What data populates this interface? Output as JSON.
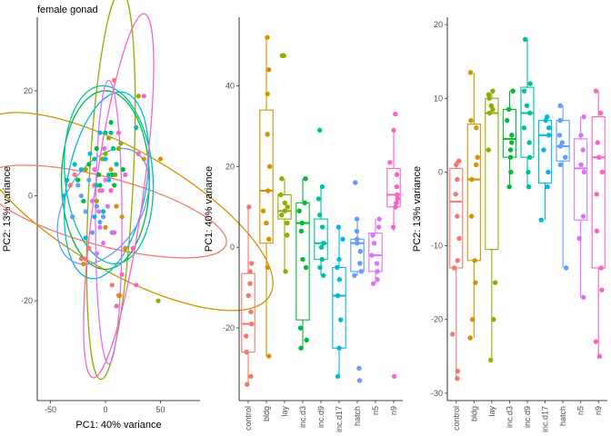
{
  "figure_title": "female gonad",
  "colors": {
    "control": "#F8766D",
    "bldg": "#D39200",
    "lay": "#93AA00",
    "inc.d3": "#00BA38",
    "inc.d9": "#00C19F",
    "inc.d17": "#00B9E3",
    "hatch": "#619CFF",
    "n5": "#DB72FB",
    "n9": "#FF61C3"
  },
  "chart_data": [
    {
      "type": "scatter",
      "title": "female gonad",
      "xlabel": "PC1: 40% variance",
      "ylabel": "PC2: 13% variance",
      "xlim": [
        -62,
        86
      ],
      "ylim": [
        -39,
        34
      ],
      "xticks": [
        -50,
        0,
        50
      ],
      "yticks": [
        -20,
        0,
        20
      ],
      "grid": false,
      "ellipses": [
        {
          "group": "control",
          "cx": -1,
          "cy": -3,
          "rx": 31,
          "ry": 24,
          "angle": -75
        },
        {
          "group": "bldg",
          "cx": 17,
          "cy": -3,
          "rx": 55,
          "ry": 32,
          "angle": -60
        },
        {
          "group": "lay",
          "cx": 5,
          "cy": 2,
          "rx": 20,
          "ry": 37,
          "angle": 3
        },
        {
          "group": "inc.d3",
          "cx": 0,
          "cy": 3,
          "rx": 40,
          "ry": 17,
          "angle": 0
        },
        {
          "group": "inc.d9",
          "cx": 3,
          "cy": 4,
          "rx": 40,
          "ry": 17,
          "angle": -5
        },
        {
          "group": "inc.d17",
          "cx": 1,
          "cy": 2,
          "rx": 36,
          "ry": 18,
          "angle": 10
        },
        {
          "group": "hatch",
          "cx": -2,
          "cy": -2,
          "rx": 35,
          "ry": 12,
          "angle": 30
        },
        {
          "group": "n5",
          "cx": 3,
          "cy": -5,
          "rx": 12,
          "ry": 27,
          "angle": 0
        },
        {
          "group": "n9",
          "cx": 12,
          "cy": 0,
          "rx": 22,
          "ry": 35,
          "angle": 8
        }
      ],
      "points": [
        {
          "group": "control",
          "x": -32,
          "y": 2
        },
        {
          "group": "control",
          "x": -28,
          "y": 4
        },
        {
          "group": "control",
          "x": -22,
          "y": -12
        },
        {
          "group": "control",
          "x": -15,
          "y": -10
        },
        {
          "group": "control",
          "x": -18,
          "y": -12
        },
        {
          "group": "control",
          "x": -5,
          "y": 1
        },
        {
          "group": "control",
          "x": 6,
          "y": -17
        },
        {
          "group": "control",
          "x": 8,
          "y": 22
        },
        {
          "group": "control",
          "x": 12,
          "y": -19
        },
        {
          "group": "control",
          "x": -10,
          "y": 2
        },
        {
          "group": "bldg",
          "x": 50,
          "y": 7
        },
        {
          "group": "bldg",
          "x": 13,
          "y": -19
        },
        {
          "group": "bldg",
          "x": 18,
          "y": -10
        },
        {
          "group": "bldg",
          "x": 15,
          "y": -4
        },
        {
          "group": "bldg",
          "x": 10,
          "y": -2
        },
        {
          "group": "bldg",
          "x": 35,
          "y": 7
        },
        {
          "group": "bldg",
          "x": -2,
          "y": 7
        },
        {
          "group": "bldg",
          "x": 5,
          "y": 5
        },
        {
          "group": "bldg",
          "x": -20,
          "y": -13
        },
        {
          "group": "bldg",
          "x": 0,
          "y": -6
        },
        {
          "group": "lay",
          "x": 30,
          "y": 19
        },
        {
          "group": "lay",
          "x": 48,
          "y": -20
        },
        {
          "group": "lay",
          "x": 3,
          "y": 11
        },
        {
          "group": "lay",
          "x": 12,
          "y": 9
        },
        {
          "group": "lay",
          "x": -18,
          "y": 5
        },
        {
          "group": "lay",
          "x": 0,
          "y": 8
        },
        {
          "group": "lay",
          "x": 9,
          "y": 4
        },
        {
          "group": "lay",
          "x": -3,
          "y": 7
        },
        {
          "group": "lay",
          "x": 14,
          "y": 10
        },
        {
          "group": "lay",
          "x": -8,
          "y": -1
        },
        {
          "group": "inc.d3",
          "x": -5,
          "y": 2
        },
        {
          "group": "inc.d3",
          "x": -20,
          "y": -1
        },
        {
          "group": "inc.d3",
          "x": -25,
          "y": 3
        },
        {
          "group": "inc.d3",
          "x": 6,
          "y": 4
        },
        {
          "group": "inc.d3",
          "x": -15,
          "y": 6
        },
        {
          "group": "inc.d3",
          "x": 5,
          "y": 14
        },
        {
          "group": "inc.d3",
          "x": 16,
          "y": 5
        },
        {
          "group": "inc.d3",
          "x": -6,
          "y": 4
        },
        {
          "group": "inc.d3",
          "x": -8,
          "y": 9
        },
        {
          "group": "inc.d3",
          "x": 8,
          "y": 2
        },
        {
          "group": "inc.d9",
          "x": -35,
          "y": 3
        },
        {
          "group": "inc.d9",
          "x": -28,
          "y": 6
        },
        {
          "group": "inc.d9",
          "x": 5,
          "y": 12
        },
        {
          "group": "inc.d9",
          "x": 10,
          "y": 6
        },
        {
          "group": "inc.d9",
          "x": -10,
          "y": 7
        },
        {
          "group": "inc.d9",
          "x": 28,
          "y": 13
        },
        {
          "group": "inc.d9",
          "x": 3,
          "y": 4
        },
        {
          "group": "inc.d9",
          "x": 0,
          "y": 12
        },
        {
          "group": "inc.d9",
          "x": 7,
          "y": 9
        },
        {
          "group": "inc.d9",
          "x": -2,
          "y": -3
        },
        {
          "group": "inc.d17",
          "x": -38,
          "y": 0
        },
        {
          "group": "inc.d17",
          "x": -30,
          "y": -4
        },
        {
          "group": "inc.d17",
          "x": -22,
          "y": 5
        },
        {
          "group": "inc.d17",
          "x": -18,
          "y": -8
        },
        {
          "group": "inc.d17",
          "x": -5,
          "y": 12
        },
        {
          "group": "inc.d17",
          "x": -10,
          "y": -4
        },
        {
          "group": "inc.d17",
          "x": 0,
          "y": 7
        },
        {
          "group": "inc.d17",
          "x": 3,
          "y": 3
        },
        {
          "group": "inc.d17",
          "x": -8,
          "y": 2
        },
        {
          "group": "inc.d17",
          "x": -14,
          "y": 8
        },
        {
          "group": "hatch",
          "x": -30,
          "y": -4
        },
        {
          "group": "hatch",
          "x": -18,
          "y": -3
        },
        {
          "group": "hatch",
          "x": -22,
          "y": 0
        },
        {
          "group": "hatch",
          "x": -12,
          "y": -7
        },
        {
          "group": "hatch",
          "x": -5,
          "y": -5
        },
        {
          "group": "hatch",
          "x": -15,
          "y": 3
        },
        {
          "group": "hatch",
          "x": -8,
          "y": -2
        },
        {
          "group": "hatch",
          "x": -2,
          "y": -4
        },
        {
          "group": "hatch",
          "x": 6,
          "y": -7
        },
        {
          "group": "hatch",
          "x": -25,
          "y": 2
        },
        {
          "group": "n5",
          "x": -8,
          "y": -11
        },
        {
          "group": "n5",
          "x": -3,
          "y": 1
        },
        {
          "group": "n5",
          "x": 0,
          "y": 3
        },
        {
          "group": "n5",
          "x": -5,
          "y": -6
        },
        {
          "group": "n5",
          "x": -2,
          "y": -9
        },
        {
          "group": "n5",
          "x": -10,
          "y": 5
        },
        {
          "group": "n5",
          "x": 2,
          "y": -2
        },
        {
          "group": "n5",
          "x": -1,
          "y": 9
        },
        {
          "group": "n5",
          "x": -12,
          "y": -1
        },
        {
          "group": "n5",
          "x": -6,
          "y": -3
        },
        {
          "group": "n9",
          "x": 35,
          "y": 19
        },
        {
          "group": "n9",
          "x": 30,
          "y": 8
        },
        {
          "group": "n9",
          "x": 25,
          "y": -10
        },
        {
          "group": "n9",
          "x": 15,
          "y": -15
        },
        {
          "group": "n9",
          "x": 10,
          "y": -21
        },
        {
          "group": "n9",
          "x": 28,
          "y": -17
        },
        {
          "group": "n9",
          "x": 5,
          "y": 1
        },
        {
          "group": "n9",
          "x": 12,
          "y": 12
        },
        {
          "group": "n9",
          "x": 18,
          "y": 4
        },
        {
          "group": "n9",
          "x": 8,
          "y": -7
        }
      ]
    },
    {
      "type": "box",
      "xlabel": "",
      "ylabel": "PC1: 40% variance",
      "ylim": [
        -38,
        57
      ],
      "yticks": [
        -20,
        0,
        20,
        40
      ],
      "grid": false,
      "categories": [
        "control",
        "bldg",
        "lay",
        "inc.d3",
        "inc.d9",
        "inc.d17",
        "hatch",
        "n5",
        "n9"
      ],
      "boxes": [
        {
          "group": "control",
          "q1": -26,
          "median": -19,
          "q3": -6.5,
          "lower": -34,
          "upper": 10
        },
        {
          "group": "bldg",
          "q1": 1,
          "median": 14,
          "q3": 34,
          "lower": -27,
          "upper": 52
        },
        {
          "group": "lay",
          "q1": 7,
          "median": 9,
          "q3": 13,
          "lower": -6,
          "upper": 17
        },
        {
          "group": "inc.d3",
          "q1": -18,
          "median": 6,
          "q3": 11,
          "lower": -25,
          "upper": 17
        },
        {
          "group": "inc.d9",
          "q1": -3,
          "median": 1,
          "q3": 7,
          "lower": -7,
          "upper": 15
        },
        {
          "group": "inc.d17",
          "q1": -25,
          "median": -12,
          "q3": -5,
          "lower": -32,
          "upper": 5
        },
        {
          "group": "hatch",
          "q1": -6,
          "median": 1,
          "q3": 2,
          "lower": -7,
          "upper": 7
        },
        {
          "group": "n5",
          "q1": -6,
          "median": -2,
          "q3": 3.5,
          "lower": -9,
          "upper": 7
        },
        {
          "group": "n9",
          "q1": 10,
          "median": 13,
          "q3": 19.5,
          "lower": 4,
          "upper": 29
        }
      ],
      "points": [
        {
          "group": "control",
          "values": [
            10,
            -4,
            -6,
            -9,
            -12,
            -16,
            -19,
            -22,
            -26,
            -32,
            -34
          ]
        },
        {
          "group": "bldg",
          "values": [
            52,
            44,
            38,
            28,
            20,
            14,
            9,
            6,
            2,
            -5,
            -27
          ]
        },
        {
          "group": "lay",
          "values": [
            47.5,
            47.5,
            17,
            13,
            11,
            10,
            9,
            8,
            6,
            3,
            -6
          ]
        },
        {
          "group": "inc.d3",
          "values": [
            17,
            11,
            9,
            6,
            4,
            -3,
            -5,
            -20,
            -23,
            -25
          ]
        },
        {
          "group": "inc.d9",
          "values": [
            29,
            15,
            12,
            8,
            5,
            1,
            0,
            -3,
            -5,
            -7
          ]
        },
        {
          "group": "inc.d17",
          "values": [
            5,
            2,
            -3,
            -5,
            -8,
            -12,
            -18,
            -25,
            -32
          ]
        },
        {
          "group": "hatch",
          "values": [
            16,
            7,
            4,
            2,
            1,
            -1,
            -4,
            -6,
            -7,
            -30,
            -33
          ]
        },
        {
          "group": "n5",
          "values": [
            7,
            5,
            3,
            1,
            -2,
            -4,
            -6,
            -8,
            -9
          ]
        },
        {
          "group": "n9",
          "values": [
            33,
            29,
            21,
            18,
            15,
            13,
            12,
            11,
            10,
            5,
            -32
          ]
        }
      ]
    },
    {
      "type": "box",
      "xlabel": "",
      "ylabel": "PC2: 13% variance",
      "ylim": [
        -31,
        21
      ],
      "yticks": [
        -30,
        -20,
        -10,
        0,
        10,
        20
      ],
      "grid": false,
      "categories": [
        "control",
        "bldg",
        "lay",
        "inc.d3",
        "inc.d9",
        "inc.d17",
        "hatch",
        "n5",
        "n9"
      ],
      "boxes": [
        {
          "group": "control",
          "q1": -13,
          "median": -4,
          "q3": 0.5,
          "lower": -28,
          "upper": 1.5
        },
        {
          "group": "bldg",
          "q1": -12,
          "median": -1,
          "q3": 6.5,
          "lower": -22.5,
          "upper": 13.5
        },
        {
          "group": "lay",
          "q1": -10.5,
          "median": 8,
          "q3": 10,
          "lower": -25.5,
          "upper": 11
        },
        {
          "group": "inc.d3",
          "q1": 2,
          "median": 4.5,
          "q3": 8.5,
          "lower": -2,
          "upper": 11
        },
        {
          "group": "inc.d9",
          "q1": 2,
          "median": 8,
          "q3": 11.5,
          "lower": -2,
          "upper": 18
        },
        {
          "group": "inc.d17",
          "q1": -1.5,
          "median": 5,
          "q3": 7,
          "lower": -6.5,
          "upper": 7.5
        },
        {
          "group": "hatch",
          "q1": 1.5,
          "median": 3.5,
          "q3": 7,
          "lower": -13,
          "upper": 9
        },
        {
          "group": "n5",
          "q1": -6.5,
          "median": 0.5,
          "q3": 4.5,
          "lower": -17,
          "upper": 7.5
        },
        {
          "group": "n9",
          "q1": -13,
          "median": 2,
          "q3": 7.5,
          "lower": -25,
          "upper": 11
        }
      ],
      "points": [
        {
          "group": "control",
          "values": [
            1.5,
            1,
            -1,
            -3,
            -6,
            -9,
            -12,
            -13,
            -22,
            -27,
            -28
          ]
        },
        {
          "group": "bldg",
          "values": [
            13.5,
            7,
            6,
            2,
            1,
            -1,
            -6,
            -12,
            -15,
            -20,
            -22.5
          ]
        },
        {
          "group": "lay",
          "values": [
            11,
            10.5,
            10,
            9,
            8.5,
            8,
            3,
            -15,
            -20,
            -25.5
          ]
        },
        {
          "group": "inc.d3",
          "values": [
            11,
            8.5,
            7,
            5,
            4,
            3,
            2,
            0,
            -2
          ]
        },
        {
          "group": "inc.d9",
          "values": [
            18,
            12,
            11,
            9,
            8,
            6,
            4,
            2,
            0,
            -2
          ]
        },
        {
          "group": "inc.d17",
          "values": [
            7.5,
            7,
            6,
            5,
            3,
            0,
            -2,
            -6.5
          ]
        },
        {
          "group": "hatch",
          "values": [
            9,
            7,
            5,
            4,
            3.5,
            2,
            1,
            -13
          ]
        },
        {
          "group": "n5",
          "values": [
            7.5,
            5,
            3,
            1,
            0,
            -6,
            -9,
            -17
          ]
        },
        {
          "group": "n9",
          "values": [
            11,
            8,
            4,
            2,
            0,
            -3,
            -8,
            -13,
            -16,
            -23,
            -25
          ]
        }
      ]
    }
  ]
}
